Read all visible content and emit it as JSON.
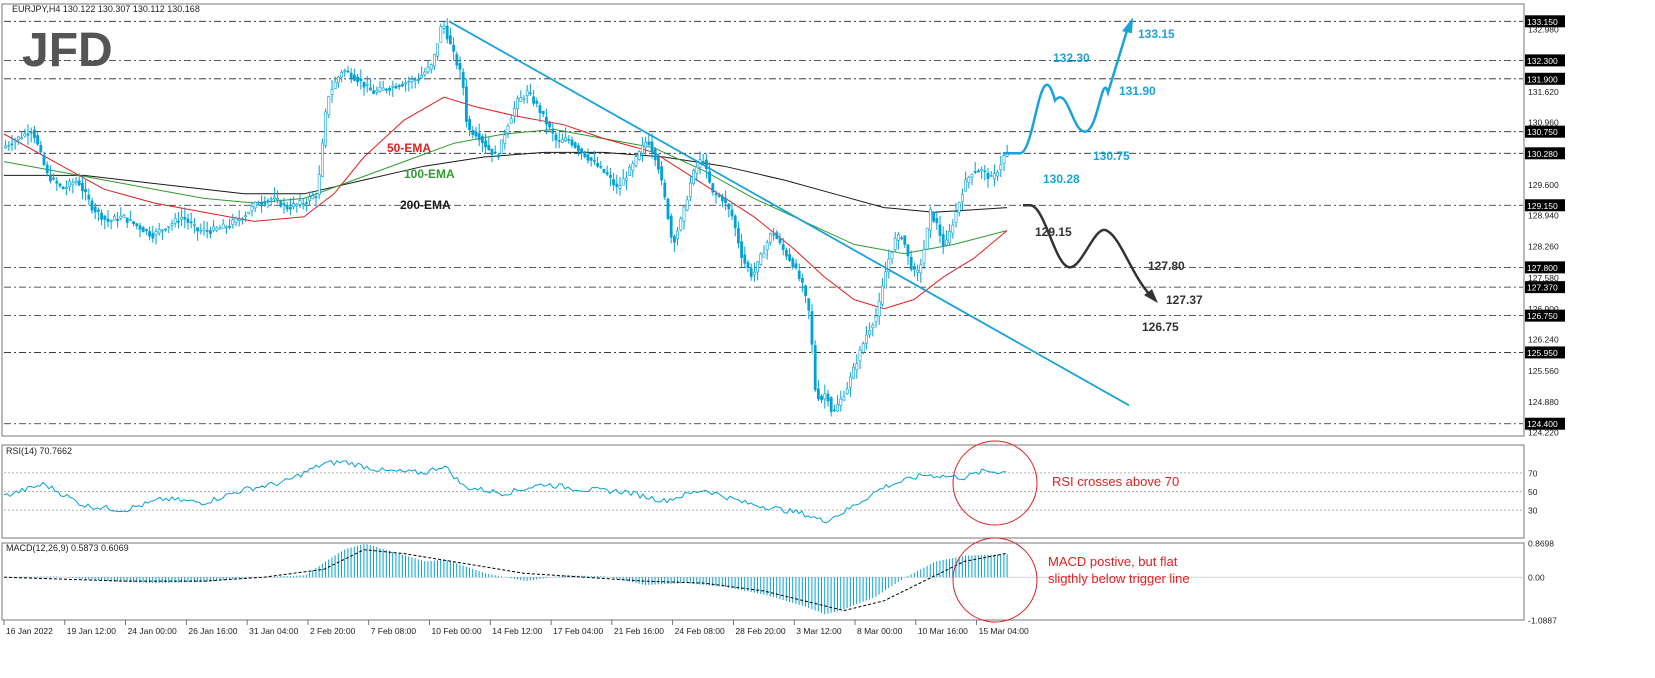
{
  "header": {
    "symbol_line": "EURJPY,H4  130.122 130.307 130.112 130.168",
    "logo": "JFD"
  },
  "colors": {
    "candle": "#00A2D8",
    "ema50": "#E02020",
    "ema100": "#2E9B2E",
    "ema200": "#1A1A1A",
    "bullish_path": "#1AA3D9",
    "bearish_path": "#333333",
    "trendline": "#1AA3D9",
    "annotation": "#E02020"
  },
  "chart_data": [
    {
      "type": "candlestick",
      "name": "price",
      "ylim": [
        124.22,
        133.2
      ],
      "time_labels": [
        "16 Jan 2022",
        "19 Jan 12:00",
        "24 Jan 00:00",
        "26 Jan 16:00",
        "31 Jan 04:00",
        "2 Feb 20:00",
        "7 Feb 08:00",
        "10 Feb 00:00",
        "14 Feb 12:00",
        "17 Feb 04:00",
        "21 Feb 16:00",
        "24 Feb 08:00",
        "28 Feb 20:00",
        "3 Mar 12:00",
        "8 Mar 00:00",
        "10 Mar 16:00",
        "15 Mar 04:00"
      ],
      "y_ticks": [
        "132.980",
        "131.620",
        "130.960",
        "129.600",
        "128.940",
        "128.260",
        "127.580",
        "126.900",
        "126.240",
        "125.560",
        "124.880",
        "124.220"
      ],
      "levels": [
        {
          "value": 133.15,
          "axis_label": "133.150"
        },
        {
          "value": 132.3,
          "axis_label": "132.300"
        },
        {
          "value": 131.9,
          "axis_label": "131.900"
        },
        {
          "value": 130.75,
          "axis_label": "130.750"
        },
        {
          "value": 130.28,
          "axis_label": "130.280"
        },
        {
          "value": 129.15,
          "axis_label": "129.150"
        },
        {
          "value": 127.8,
          "axis_label": "127.800"
        },
        {
          "value": 127.37,
          "axis_label": "127.370"
        },
        {
          "value": 126.75,
          "axis_label": "126.750"
        },
        {
          "value": 125.95,
          "axis_label": "125.950"
        },
        {
          "value": 124.4,
          "axis_label": "124.400"
        }
      ],
      "price_path": [
        [
          0,
          130.4
        ],
        [
          15,
          130.6
        ],
        [
          30,
          130.8
        ],
        [
          45,
          129.8
        ],
        [
          60,
          129.5
        ],
        [
          75,
          129.7
        ],
        [
          90,
          129.1
        ],
        [
          105,
          128.8
        ],
        [
          120,
          128.9
        ],
        [
          135,
          128.7
        ],
        [
          150,
          128.5
        ],
        [
          165,
          128.7
        ],
        [
          180,
          128.9
        ],
        [
          195,
          128.6
        ],
        [
          210,
          128.6
        ],
        [
          225,
          128.7
        ],
        [
          240,
          128.9
        ],
        [
          255,
          129.2
        ],
        [
          270,
          129.3
        ],
        [
          285,
          129.1
        ],
        [
          300,
          129.2
        ],
        [
          315,
          129.4
        ],
        [
          325,
          131.5
        ],
        [
          340,
          132.1
        ],
        [
          355,
          131.9
        ],
        [
          370,
          131.6
        ],
        [
          385,
          131.7
        ],
        [
          400,
          131.8
        ],
        [
          415,
          131.9
        ],
        [
          430,
          132.2
        ],
        [
          440,
          133.15
        ],
        [
          450,
          132.5
        ],
        [
          460,
          131.9
        ],
        [
          465,
          130.8
        ],
        [
          475,
          130.7
        ],
        [
          485,
          130.4
        ],
        [
          495,
          130.2
        ],
        [
          505,
          130.9
        ],
        [
          515,
          131.4
        ],
        [
          525,
          131.6
        ],
        [
          535,
          131.3
        ],
        [
          545,
          130.9
        ],
        [
          555,
          130.5
        ],
        [
          565,
          130.6
        ],
        [
          575,
          130.4
        ],
        [
          590,
          130.1
        ],
        [
          605,
          129.8
        ],
        [
          615,
          129.5
        ],
        [
          630,
          130.0
        ],
        [
          645,
          130.6
        ],
        [
          655,
          130.1
        ],
        [
          665,
          129.0
        ],
        [
          670,
          128.3
        ],
        [
          680,
          128.9
        ],
        [
          690,
          129.8
        ],
        [
          700,
          130.2
        ],
        [
          710,
          129.4
        ],
        [
          720,
          129.3
        ],
        [
          730,
          128.9
        ],
        [
          740,
          128.0
        ],
        [
          750,
          127.6
        ],
        [
          760,
          128.1
        ],
        [
          770,
          128.6
        ],
        [
          780,
          128.2
        ],
        [
          790,
          127.9
        ],
        [
          800,
          127.4
        ],
        [
          808,
          126.7
        ],
        [
          812,
          125.2
        ],
        [
          818,
          124.9
        ],
        [
          824,
          125.1
        ],
        [
          830,
          124.6
        ],
        [
          838,
          124.9
        ],
        [
          845,
          125.2
        ],
        [
          855,
          125.8
        ],
        [
          865,
          126.4
        ],
        [
          875,
          126.8
        ],
        [
          885,
          127.9
        ],
        [
          893,
          128.4
        ],
        [
          900,
          128.5
        ],
        [
          907,
          127.9
        ],
        [
          914,
          127.6
        ],
        [
          920,
          128.0
        ],
        [
          928,
          129.0
        ],
        [
          935,
          128.7
        ],
        [
          942,
          128.2
        ],
        [
          948,
          128.6
        ],
        [
          955,
          129.1
        ],
        [
          962,
          129.6
        ],
        [
          970,
          129.9
        ],
        [
          980,
          129.9
        ],
        [
          990,
          129.7
        ],
        [
          997,
          130.0
        ],
        [
          1003,
          130.28
        ]
      ],
      "ema50_path": [
        [
          0,
          130.7
        ],
        [
          50,
          130.1
        ],
        [
          100,
          129.5
        ],
        [
          150,
          129.2
        ],
        [
          200,
          129.0
        ],
        [
          250,
          128.8
        ],
        [
          300,
          128.9
        ],
        [
          330,
          129.4
        ],
        [
          360,
          130.2
        ],
        [
          400,
          131.0
        ],
        [
          440,
          131.5
        ],
        [
          470,
          131.3
        ],
        [
          510,
          131.1
        ],
        [
          560,
          130.9
        ],
        [
          600,
          130.6
        ],
        [
          650,
          130.3
        ],
        [
          700,
          129.6
        ],
        [
          750,
          128.9
        ],
        [
          790,
          128.2
        ],
        [
          820,
          127.6
        ],
        [
          850,
          127.1
        ],
        [
          880,
          126.9
        ],
        [
          910,
          127.1
        ],
        [
          940,
          127.6
        ],
        [
          970,
          128.0
        ],
        [
          1003,
          128.6
        ]
      ],
      "ema100_path": [
        [
          0,
          130.1
        ],
        [
          50,
          129.9
        ],
        [
          100,
          129.7
        ],
        [
          150,
          129.5
        ],
        [
          200,
          129.3
        ],
        [
          250,
          129.2
        ],
        [
          300,
          129.3
        ],
        [
          350,
          129.7
        ],
        [
          400,
          130.1
        ],
        [
          450,
          130.5
        ],
        [
          500,
          130.7
        ],
        [
          550,
          130.8
        ],
        [
          600,
          130.6
        ],
        [
          650,
          130.4
        ],
        [
          700,
          129.9
        ],
        [
          750,
          129.3
        ],
        [
          800,
          128.8
        ],
        [
          850,
          128.3
        ],
        [
          900,
          128.1
        ],
        [
          950,
          128.3
        ],
        [
          1003,
          128.6
        ]
      ],
      "ema200_path": [
        [
          0,
          129.8
        ],
        [
          80,
          129.8
        ],
        [
          160,
          129.6
        ],
        [
          240,
          129.4
        ],
        [
          300,
          129.4
        ],
        [
          360,
          129.7
        ],
        [
          420,
          130.0
        ],
        [
          480,
          130.2
        ],
        [
          540,
          130.3
        ],
        [
          600,
          130.3
        ],
        [
          660,
          130.2
        ],
        [
          720,
          130.0
        ],
        [
          780,
          129.7
        ],
        [
          830,
          129.4
        ],
        [
          880,
          129.1
        ],
        [
          930,
          129.0
        ],
        [
          1003,
          129.1
        ]
      ],
      "trendline": [
        [
          445,
          133.15
        ],
        [
          1125,
          124.8
        ]
      ],
      "ema_labels": {
        "ema50": "50-EMA",
        "ema100": "100-EMA",
        "ema200": "200-EMA"
      },
      "bullish_labels": [
        "132.30",
        "131.90",
        "130.75",
        "130.28",
        "133.15"
      ],
      "bearish_labels": [
        "129.15",
        "127.80",
        "127.37",
        "126.75"
      ]
    },
    {
      "type": "line",
      "name": "RSI",
      "header": "RSI(14) 70.7662",
      "ylim": [
        0,
        100
      ],
      "ticks": [
        "70",
        "50",
        "30"
      ],
      "levels": [
        70,
        50,
        30
      ],
      "values": [
        [
          0,
          45
        ],
        [
          40,
          58
        ],
        [
          80,
          35
        ],
        [
          120,
          30
        ],
        [
          160,
          42
        ],
        [
          200,
          38
        ],
        [
          240,
          52
        ],
        [
          280,
          60
        ],
        [
          320,
          80
        ],
        [
          340,
          82
        ],
        [
          380,
          72
        ],
        [
          420,
          70
        ],
        [
          440,
          78
        ],
        [
          460,
          55
        ],
        [
          500,
          48
        ],
        [
          540,
          58
        ],
        [
          580,
          52
        ],
        [
          620,
          50
        ],
        [
          660,
          40
        ],
        [
          700,
          52
        ],
        [
          740,
          38
        ],
        [
          780,
          30
        ],
        [
          800,
          26
        ],
        [
          820,
          18
        ],
        [
          840,
          28
        ],
        [
          880,
          55
        ],
        [
          920,
          68
        ],
        [
          960,
          65
        ],
        [
          980,
          72
        ],
        [
          1003,
          70.8
        ]
      ],
      "annotation": "RSI crosses above 70"
    },
    {
      "type": "bar",
      "name": "MACD",
      "header": "MACD(12,26,9) 0.5873 0.6069",
      "ylim": [
        -1.0887,
        0.8698
      ],
      "ticks": [
        "0.8698",
        "0.00",
        "-1.0887"
      ],
      "histogram": [
        [
          0,
          0.0
        ],
        [
          50,
          0.02
        ],
        [
          100,
          -0.1
        ],
        [
          150,
          -0.15
        ],
        [
          200,
          -0.12
        ],
        [
          250,
          0.0
        ],
        [
          300,
          0.05
        ],
        [
          320,
          0.4
        ],
        [
          340,
          0.72
        ],
        [
          360,
          0.85
        ],
        [
          380,
          0.7
        ],
        [
          420,
          0.4
        ],
        [
          440,
          0.45
        ],
        [
          480,
          0.1
        ],
        [
          520,
          -0.1
        ],
        [
          560,
          0.05
        ],
        [
          600,
          0.02
        ],
        [
          640,
          -0.2
        ],
        [
          680,
          -0.15
        ],
        [
          720,
          -0.25
        ],
        [
          760,
          -0.45
        ],
        [
          800,
          -0.75
        ],
        [
          820,
          -0.95
        ],
        [
          840,
          -0.8
        ],
        [
          870,
          -0.5
        ],
        [
          900,
          0.0
        ],
        [
          930,
          0.4
        ],
        [
          960,
          0.55
        ],
        [
          1003,
          0.5873
        ]
      ],
      "signal": [
        [
          0,
          0.0
        ],
        [
          60,
          -0.05
        ],
        [
          120,
          -0.1
        ],
        [
          200,
          -0.1
        ],
        [
          260,
          0.0
        ],
        [
          320,
          0.2
        ],
        [
          360,
          0.7
        ],
        [
          400,
          0.6
        ],
        [
          460,
          0.35
        ],
        [
          520,
          0.1
        ],
        [
          580,
          0.0
        ],
        [
          640,
          -0.1
        ],
        [
          700,
          -0.15
        ],
        [
          760,
          -0.35
        ],
        [
          800,
          -0.6
        ],
        [
          840,
          -0.85
        ],
        [
          880,
          -0.6
        ],
        [
          920,
          -0.1
        ],
        [
          960,
          0.4
        ],
        [
          1003,
          0.6069
        ]
      ],
      "annotation": [
        "MACD postive, but flat",
        "sligthly below trigger line"
      ]
    }
  ]
}
